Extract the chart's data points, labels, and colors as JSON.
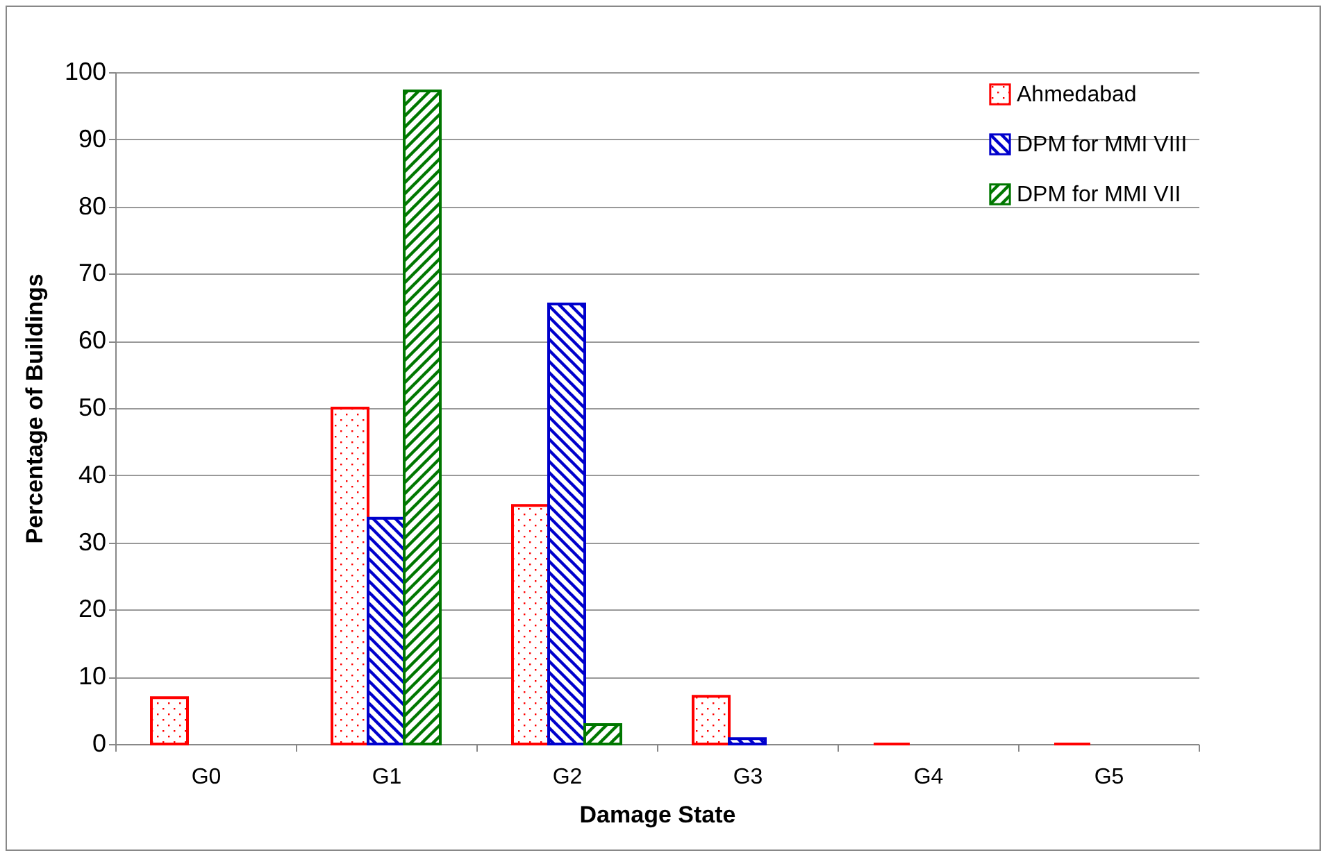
{
  "chart_data": {
    "type": "bar",
    "xlabel": "Damage State",
    "ylabel": "Percentage of Buildings",
    "categories": [
      "G0",
      "G1",
      "G2",
      "G3",
      "G4",
      "G5"
    ],
    "series": [
      {
        "name": "Ahmedabad",
        "color": "#ff0000",
        "values": [
          6.9,
          50,
          35.5,
          7.1,
          0,
          0
        ]
      },
      {
        "name": "DPM for MMI VIII",
        "color": "#0000cc",
        "values": [
          null,
          33.6,
          65.5,
          0.8,
          null,
          null
        ]
      },
      {
        "name": "DPM for MMI VII",
        "color": "#007700",
        "values": [
          null,
          97.2,
          2.9,
          null,
          null,
          null
        ]
      }
    ],
    "ylim": [
      0,
      100
    ],
    "yticks": [
      0,
      10,
      20,
      30,
      40,
      50,
      60,
      70,
      80,
      90,
      100
    ],
    "grid": "y",
    "legend": "top right"
  }
}
